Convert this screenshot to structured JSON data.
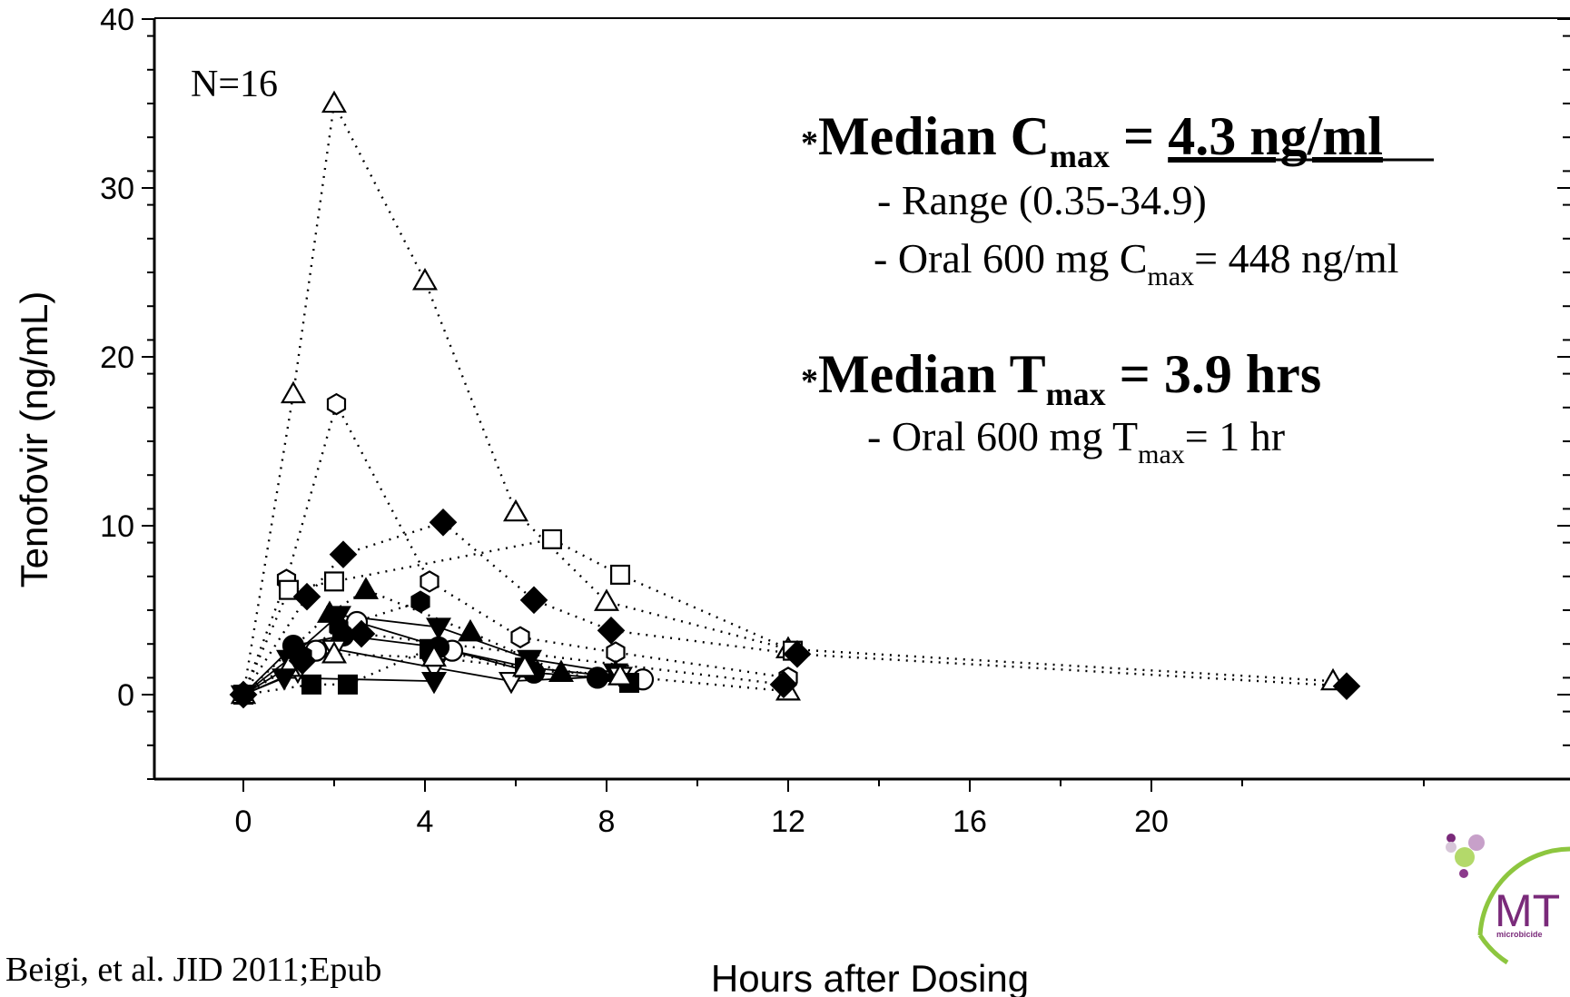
{
  "chart_data": {
    "type": "scatter",
    "annotation_n": "N=16",
    "xlabel": "Hours after Dosing",
    "ylabel": "Tenofovir (ng/mL)",
    "xlim": [
      -2,
      26
    ],
    "ylim": [
      -5,
      40
    ],
    "xticks": [
      "0",
      "4",
      "8",
      "12",
      "16",
      "20"
    ],
    "xtick_values": [
      0,
      4,
      8,
      12,
      16,
      20
    ],
    "yticks": [
      "0",
      "10",
      "20",
      "30",
      "40"
    ],
    "ytick_values": [
      0,
      10,
      20,
      30,
      40
    ],
    "citation": "Beigi, et al.  JID 2011;Epub",
    "cmax": {
      "prefix": "*",
      "label": "Median C",
      "sub": "max",
      "equals": " = ",
      "value": "4.3 ng/ml",
      "range": "- Range (0.35-34.9)",
      "oral_prefix": "- Oral 600 mg C",
      "oral_sub": "max",
      "oral_suffix": "= 448 ng/ml"
    },
    "tmax": {
      "prefix": "*",
      "label": "Median T",
      "sub": "max",
      "equals": " =  ",
      "value": "3.9 hrs",
      "oral_prefix": "- Oral 600 mg T",
      "oral_sub": "max",
      "oral_suffix": "= 1 hr"
    },
    "series": [
      {
        "marker": "triangle-up-open",
        "line": "dotted",
        "x": [
          0,
          1.1,
          2,
          4,
          6,
          8,
          12,
          24
        ],
        "y": [
          0,
          17.8,
          35,
          24.5,
          10.8,
          5.5,
          2.7,
          0.8
        ]
      },
      {
        "marker": "hexagon-open",
        "line": "dotted",
        "x": [
          0,
          0.95,
          2.05,
          4.1,
          6.1,
          8.2,
          12
        ],
        "y": [
          0,
          6.8,
          17.2,
          6.7,
          3.4,
          2.5,
          1.0
        ]
      },
      {
        "marker": "square-open",
        "line": "dotted",
        "x": [
          0,
          1,
          2,
          6.8,
          8.3,
          12.1
        ],
        "y": [
          0,
          6.2,
          6.7,
          9.2,
          7.1,
          2.6
        ]
      },
      {
        "marker": "diamond-filled",
        "line": "dotted",
        "x": [
          0,
          1.4,
          2.2,
          4.4,
          6.4,
          8.1,
          12.2,
          24.3
        ],
        "y": [
          0,
          5.8,
          8.3,
          10.2,
          5.6,
          3.8,
          2.4,
          0.5
        ]
      },
      {
        "marker": "triangle-up-filled",
        "line": "dotted",
        "x": [
          0,
          1.9,
          2.7,
          5,
          7,
          8.2
        ],
        "y": [
          0,
          4.8,
          6.2,
          3.7,
          1.3,
          1.3
        ]
      },
      {
        "marker": "circle-open",
        "line": "solid",
        "x": [
          0,
          1.6,
          2.5,
          4.6,
          6.3,
          8.8
        ],
        "y": [
          0,
          2.6,
          4.3,
          2.6,
          1.6,
          0.9
        ]
      },
      {
        "marker": "circle-filled",
        "line": "solid",
        "x": [
          0,
          1.1,
          2.2,
          4.3,
          6.4,
          7.8
        ],
        "y": [
          0,
          2.9,
          3.5,
          2.8,
          1.3,
          1.0
        ]
      },
      {
        "marker": "triangle-down-filled",
        "line": "solid",
        "x": [
          0,
          1,
          2.1,
          4.3,
          6.3,
          8.2
        ],
        "y": [
          0,
          2.1,
          4.7,
          4.0,
          2.1,
          1.3
        ]
      },
      {
        "marker": "triangle-down-open",
        "line": "solid",
        "x": [
          0,
          1.2,
          2,
          4.2,
          5.9,
          8.3
        ],
        "y": [
          0,
          1.4,
          2.7,
          1.6,
          0.8,
          1.1
        ]
      },
      {
        "marker": "square-filled",
        "line": "dotted",
        "x": [
          0,
          1.5,
          2.3,
          4.1,
          6.2,
          8.5
        ],
        "y": [
          0,
          0.6,
          0.6,
          2.7,
          1.6,
          0.7
        ]
      },
      {
        "marker": "triangle-up-open",
        "line": "dotted",
        "x": [
          0,
          1,
          2,
          4.2,
          6.2,
          8.3,
          12
        ],
        "y": [
          0,
          1.6,
          2.4,
          2.2,
          1.6,
          1.1,
          0.2
        ]
      },
      {
        "marker": "hexagon-filled",
        "line": "dotted",
        "x": [
          0,
          1.3,
          2.1,
          3.9
        ],
        "y": [
          0,
          2.3,
          4.0,
          5.5
        ]
      },
      {
        "marker": "triangle-down-filled",
        "line": "solid",
        "x": [
          0,
          0.9,
          4.2
        ],
        "y": [
          0,
          1.0,
          0.8
        ]
      },
      {
        "marker": "diamond-filled",
        "line": "dotted",
        "x": [
          0,
          1.3,
          2.6,
          11.9
        ],
        "y": [
          0,
          2.0,
          3.6,
          0.6
        ]
      }
    ]
  }
}
